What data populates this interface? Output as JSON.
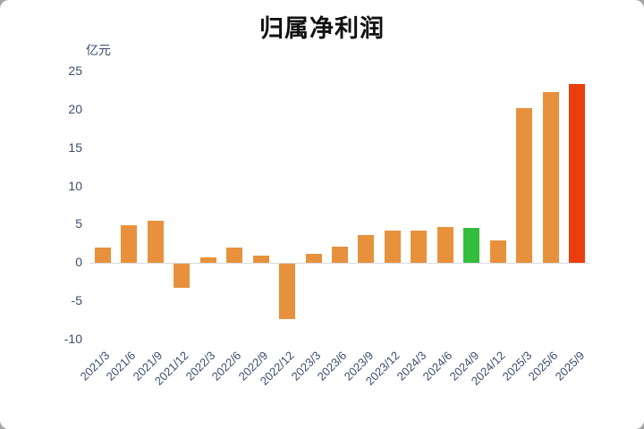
{
  "page": {
    "background_color": "#a3a3a3",
    "card_background": "#ffffff"
  },
  "chart_data": {
    "type": "bar",
    "title": "归属净利润",
    "unit_label": "亿元",
    "categories": [
      "2021/3",
      "2021/6",
      "2021/9",
      "2021/12",
      "2022/3",
      "2022/6",
      "2022/9",
      "2022/12",
      "2023/3",
      "2023/6",
      "2023/9",
      "2023/12",
      "2024/3",
      "2024/6",
      "2024/9",
      "2024/12",
      "2025/3",
      "2025/6",
      "2025/9"
    ],
    "values": [
      2.0,
      4.9,
      5.5,
      -3.1,
      0.7,
      2.0,
      1.0,
      -7.2,
      1.2,
      2.1,
      3.6,
      4.2,
      4.2,
      4.7,
      4.6,
      2.9,
      20.2,
      22.3,
      23.4
    ],
    "bar_colors": [
      "#e8913c",
      "#e8913c",
      "#e8913c",
      "#e8913c",
      "#e8913c",
      "#e8913c",
      "#e8913c",
      "#e8913c",
      "#e8913c",
      "#e8913c",
      "#e8913c",
      "#e8913c",
      "#e8913c",
      "#e8913c",
      "#33bd3c",
      "#e8913c",
      "#e8913c",
      "#e8913c",
      "#eb3e0e"
    ],
    "ylim": [
      -10,
      25
    ],
    "yticks": [
      25,
      20,
      15,
      10,
      5,
      0,
      -5,
      -10
    ],
    "grid": false,
    "legend": "none",
    "zero_line_color": "#d9d9d9",
    "axis_text_color": "#3d4d6e",
    "title_color": "#111111"
  }
}
